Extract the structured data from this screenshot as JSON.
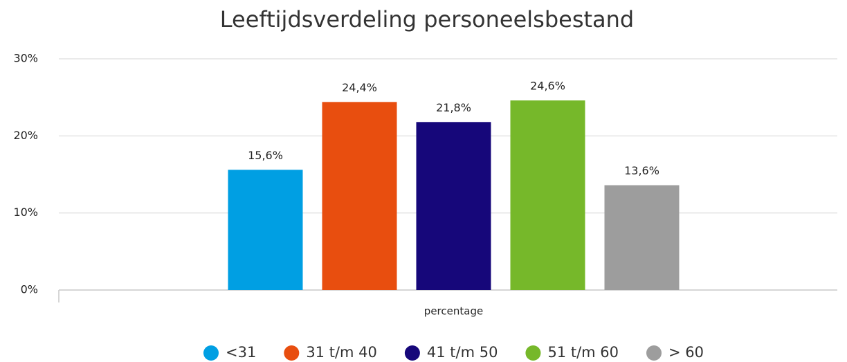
{
  "chart_data": {
    "type": "bar",
    "title": "Leeftijdsverdeling personeelsbestand",
    "categories": [
      "percentage"
    ],
    "series": [
      {
        "name": "<31",
        "color": "#009fe3",
        "values": [
          15.6
        ],
        "value_labels": [
          "15,6%"
        ]
      },
      {
        "name": "31 t/m 40",
        "color": "#e84e0f",
        "values": [
          24.4
        ],
        "value_labels": [
          "24,4%"
        ]
      },
      {
        "name": "41 t/m 50",
        "color": "#16077a",
        "values": [
          21.8
        ],
        "value_labels": [
          "21,8%"
        ]
      },
      {
        "name": "51 t/m 60",
        "color": "#76b82a",
        "values": [
          24.6
        ],
        "value_labels": [
          "24,6%"
        ]
      },
      {
        "name": "> 60",
        "color": "#9d9d9d",
        "values": [
          13.6
        ],
        "value_labels": [
          "13,6%"
        ]
      }
    ],
    "ylim": [
      0,
      30
    ],
    "yticks": [
      {
        "value": 0,
        "label": "0%"
      },
      {
        "value": 10,
        "label": "10%"
      },
      {
        "value": 20,
        "label": "20%"
      },
      {
        "value": 30,
        "label": "30%"
      }
    ],
    "grid": true,
    "legend": "bottom"
  }
}
